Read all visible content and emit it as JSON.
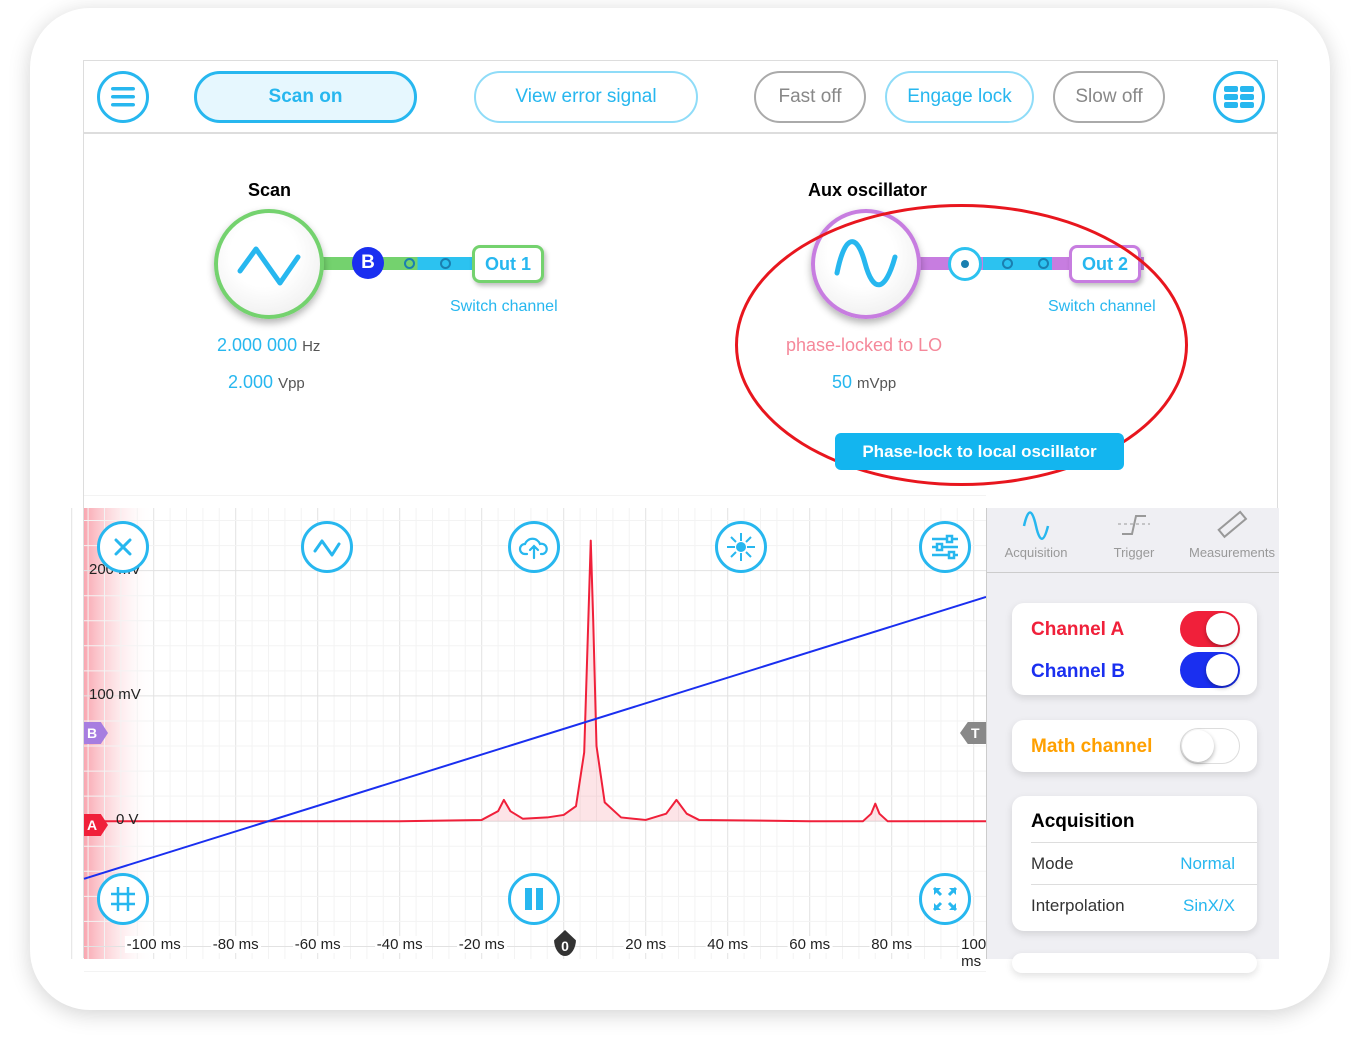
{
  "toolbar": {
    "scan": "Scan on",
    "view_error": "View error signal",
    "fast": "Fast off",
    "engage": "Engage lock",
    "slow": "Slow off"
  },
  "scan": {
    "title": "Scan",
    "channel_badge": "B",
    "output": "Out 1",
    "switch": "Switch channel",
    "freq_value": "2.000 000",
    "freq_unit": "Hz",
    "amp_value": "2.000",
    "amp_unit": "Vpp"
  },
  "aux": {
    "title": "Aux oscillator",
    "output": "Out 2",
    "switch": "Switch channel",
    "status": "phase-locked to LO",
    "amp_value": "50",
    "amp_unit": "mVpp",
    "lock_button": "Phase-lock to local oscillator"
  },
  "side": {
    "tabs": [
      "Acquisition",
      "Trigger",
      "Measurements"
    ],
    "channel_a": "Channel A",
    "channel_b": "Channel B",
    "math": "Math channel",
    "acq_title": "Acquisition",
    "rows": [
      {
        "label": "Mode",
        "value": "Normal"
      },
      {
        "label": "Interpolation",
        "value": "SinX/X"
      }
    ]
  },
  "colors": {
    "accent": "#27b7ef",
    "channel_a": "#f0203a",
    "channel_b": "#1a2ff0",
    "math": "#ffa000"
  },
  "markers": {
    "a": "A",
    "b": "B",
    "t": "T",
    "zero": "0"
  },
  "chart_data": {
    "type": "line",
    "xlabel": "",
    "ylabel": "",
    "xlim": [
      -117,
      103
    ],
    "ylim": [
      -110,
      250
    ],
    "x_ticks": [
      "-100 ms",
      "-80 ms",
      "-60 ms",
      "-40 ms",
      "-20 ms",
      "0",
      "20 ms",
      "40 ms",
      "60 ms",
      "80 ms",
      "100 ms"
    ],
    "x_tick_values": [
      -100,
      -80,
      -60,
      -40,
      -20,
      0,
      20,
      40,
      60,
      80,
      100
    ],
    "y_ticks": [
      "200 mV",
      "100 mV",
      "0 V"
    ],
    "y_tick_values": [
      200,
      100,
      0
    ],
    "series": [
      {
        "name": "Channel A",
        "color": "#f0203a",
        "x": [
          -117,
          -40,
          -20,
          -16,
          -14.6,
          -13,
          -10,
          -4,
          0,
          3,
          5,
          6,
          6.6,
          7.2,
          8,
          10,
          14,
          20,
          25,
          27.5,
          30,
          33,
          60,
          73,
          75,
          76,
          77,
          79,
          103
        ],
        "y": [
          0,
          0,
          1,
          8,
          17,
          8,
          2,
          3,
          5,
          12,
          55,
          160,
          224,
          160,
          60,
          15,
          3,
          1,
          6,
          17,
          6,
          1,
          0,
          0,
          6,
          14,
          6,
          0,
          0
        ]
      },
      {
        "name": "Channel B",
        "color": "#1a2ff0",
        "x": [
          -117,
          103
        ],
        "y": [
          -46,
          179
        ]
      }
    ]
  }
}
